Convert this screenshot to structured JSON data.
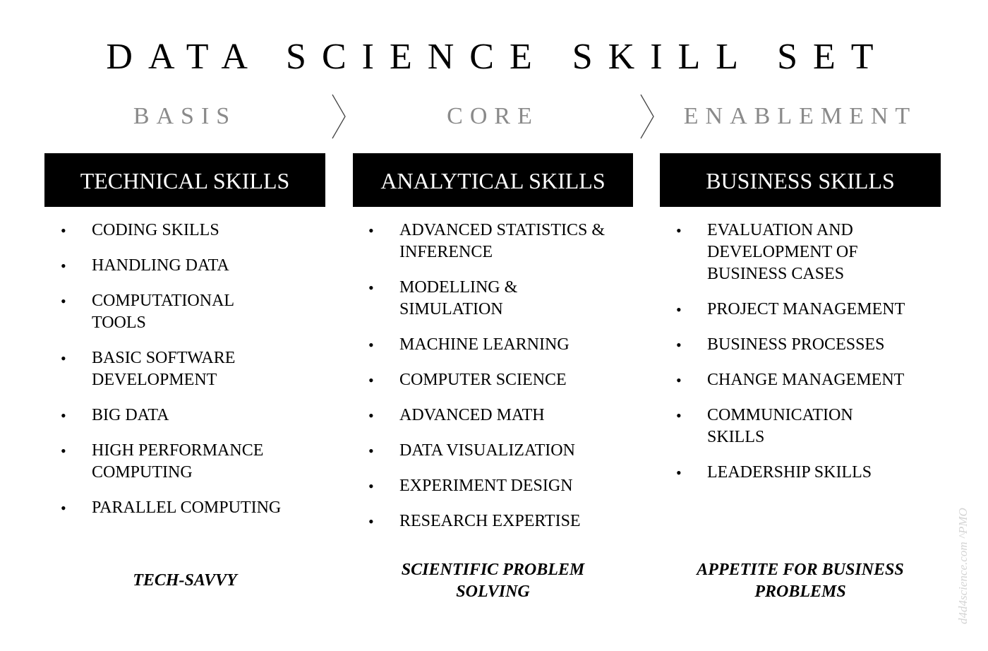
{
  "title": "DATA SCIENCE SKILL SET",
  "phases": {
    "basis": "BASIS",
    "core": "CORE",
    "enablement": "ENABLEMENT"
  },
  "columns": [
    {
      "header": "TECHNICAL SKILLS",
      "items": [
        "CODING SKILLS",
        "HANDLING DATA",
        "COMPUTATIONAL TOOLS",
        "BASIC SOFTWARE DEVELOPMENT",
        "BIG DATA",
        "HIGH PERFORMANCE COMPUTING",
        "PARALLEL COMPUTING"
      ],
      "footer": "TECH-SAVVY"
    },
    {
      "header": "ANALYTICAL SKILLS",
      "items": [
        "ADVANCED STATISTICS & INFERENCE",
        "MODELLING & SIMULATION",
        "MACHINE LEARNING",
        "COMPUTER SCIENCE",
        "ADVANCED MATH",
        "DATA VISUALIZATION",
        "EXPERIMENT DESIGN",
        "RESEARCH EXPERTISE"
      ],
      "footer": "SCIENTIFIC PROBLEM SOLVING"
    },
    {
      "header": "BUSINESS SKILLS",
      "items": [
        "EVALUATION AND DEVELOPMENT OF BUSINESS CASES",
        "PROJECT MANAGEMENT",
        "BUSINESS PROCESSES",
        "CHANGE MANAGEMENT",
        "COMMUNICATION SKILLS",
        "LEADERSHIP SKILLS"
      ],
      "footer": "APPETITE FOR BUSINESS PROBLEMS"
    }
  ],
  "bullet_glyph": "•",
  "watermark": "d4d4science.com ^PMO",
  "colors": {
    "header_bg": "#000000",
    "header_text": "#ffffff",
    "phase_text": "#8a8a8a",
    "watermark": "#d4d4d4"
  }
}
